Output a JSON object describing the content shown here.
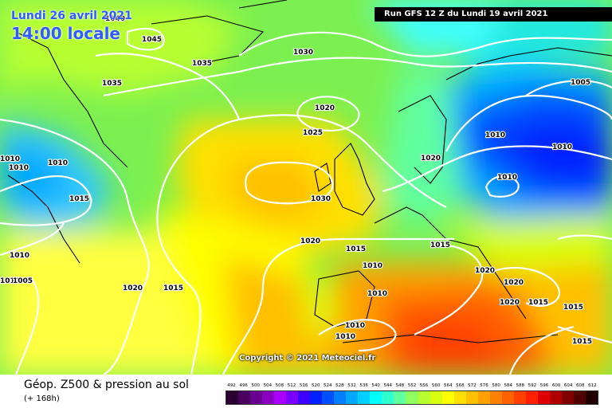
{
  "header": {
    "date": "Lundi 26 avril 2021",
    "time": "14:00 locale",
    "run_info": "Run GFS 12 Z du Lundi 19 avril 2021"
  },
  "map": {
    "copyright": "Copyright © 2021 Meteociel.fr",
    "isobar_labels": [
      "1040",
      "1045",
      "1035",
      "1035",
      "1030",
      "1020",
      "1025",
      "1010",
      "1010",
      "1010",
      "1015",
      "1030",
      "1020",
      "1015",
      "1010",
      "1020",
      "1015",
      "1010",
      "1010",
      "1010",
      "1020",
      "1015",
      "1010",
      "1010",
      "1020",
      "1020",
      "1020",
      "1015",
      "1015",
      "1005",
      "1010",
      "1015",
      "1010",
      "1010",
      "1005"
    ]
  },
  "footer": {
    "title": "Géop. Z500 & pression au sol",
    "subtitle": "(+ 168h)"
  },
  "legend": {
    "values": [
      "492",
      "496",
      "500",
      "504",
      "508",
      "512",
      "516",
      "520",
      "524",
      "528",
      "532",
      "536",
      "540",
      "544",
      "548",
      "552",
      "556",
      "560",
      "564",
      "568",
      "572",
      "576",
      "580",
      "584",
      "588",
      "592",
      "596",
      "600",
      "604",
      "608",
      "612"
    ],
    "colors": [
      "#2a0030",
      "#4a0060",
      "#6a0090",
      "#8a00c0",
      "#aa00ff",
      "#7a00ff",
      "#4000ff",
      "#0020ff",
      "#0050ff",
      "#0080ff",
      "#00a8ff",
      "#00d0ff",
      "#00ffff",
      "#30ffd0",
      "#60ffa0",
      "#90ff60",
      "#b8ff30",
      "#d8ff10",
      "#ffff00",
      "#ffe000",
      "#ffc000",
      "#ffa000",
      "#ff8000",
      "#ff6000",
      "#ff4000",
      "#ff2000",
      "#e00000",
      "#b00000",
      "#800000",
      "#500000",
      "#200000"
    ]
  }
}
